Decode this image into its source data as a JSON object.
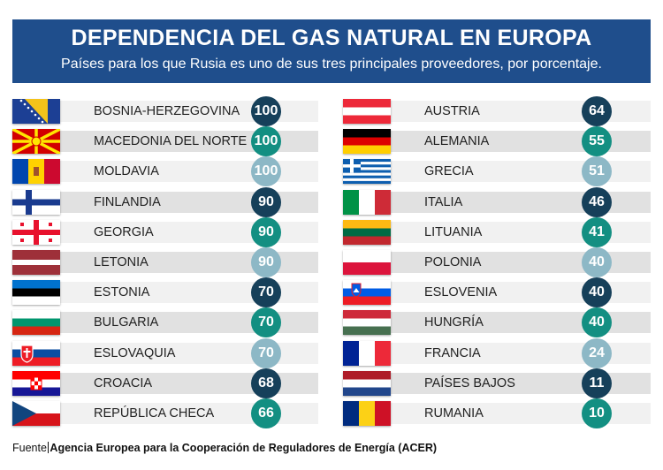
{
  "header": {
    "title": "DEPENDENCIA DEL GAS NATURAL EN EUROPA",
    "subtitle": "Países para los que Rusia es uno de sus tres principales proveedores, por porcentaje."
  },
  "footer": {
    "label": "Fuente",
    "source": "Agencia Europea para la Cooperación de Reguladores de Energía (ACER)"
  },
  "colors": {
    "header_bg": "#1f4e8c",
    "dark": "#16405a",
    "teal": "#138f82",
    "light": "#8db8c6",
    "band_light": "#f1f1f1",
    "band_dark": "#e1e1e1"
  },
  "chart_data": {
    "type": "table",
    "title": "DEPENDENCIA DEL GAS NATURAL EN EUROPA",
    "subtitle": "Países para los que Rusia es uno de sus tres principales proveedores, por porcentaje.",
    "columns": [
      [
        {
          "country": "BOSNIA-HERZEGOVINA",
          "value": 100,
          "flag": "bosnia-herzegovina-flag",
          "badge": "dark"
        },
        {
          "country": "MACEDONIA DEL NORTE",
          "value": 100,
          "flag": "north-macedonia-flag",
          "badge": "teal"
        },
        {
          "country": "MOLDAVIA",
          "value": 100,
          "flag": "moldova-flag",
          "badge": "light"
        },
        {
          "country": "FINLANDIA",
          "value": 90,
          "flag": "finland-flag",
          "badge": "dark"
        },
        {
          "country": "GEORGIA",
          "value": 90,
          "flag": "georgia-flag",
          "badge": "teal"
        },
        {
          "country": "LETONIA",
          "value": 90,
          "flag": "latvia-flag",
          "badge": "light"
        },
        {
          "country": "ESTONIA",
          "value": 70,
          "flag": "estonia-flag",
          "badge": "dark"
        },
        {
          "country": "BULGARIA",
          "value": 70,
          "flag": "bulgaria-flag",
          "badge": "teal"
        },
        {
          "country": "ESLOVAQUIA",
          "value": 70,
          "flag": "slovakia-flag",
          "badge": "light"
        },
        {
          "country": "CROACIA",
          "value": 68,
          "flag": "croatia-flag",
          "badge": "dark"
        },
        {
          "country": "REPÚBLICA CHECA",
          "value": 66,
          "flag": "czech-republic-flag",
          "badge": "teal"
        }
      ],
      [
        {
          "country": "AUSTRIA",
          "value": 64,
          "flag": "austria-flag",
          "badge": "dark"
        },
        {
          "country": "ALEMANIA",
          "value": 55,
          "flag": "germany-flag",
          "badge": "teal"
        },
        {
          "country": "GRECIA",
          "value": 51,
          "flag": "greece-flag",
          "badge": "light"
        },
        {
          "country": "ITALIA",
          "value": 46,
          "flag": "italy-flag",
          "badge": "dark"
        },
        {
          "country": "LITUANIA",
          "value": 41,
          "flag": "lithuania-flag",
          "badge": "teal"
        },
        {
          "country": "POLONIA",
          "value": 40,
          "flag": "poland-flag",
          "badge": "light"
        },
        {
          "country": "ESLOVENIA",
          "value": 40,
          "flag": "slovenia-flag",
          "badge": "dark"
        },
        {
          "country": "HUNGRÍA",
          "value": 40,
          "flag": "hungary-flag",
          "badge": "teal"
        },
        {
          "country": "FRANCIA",
          "value": 24,
          "flag": "france-flag",
          "badge": "light"
        },
        {
          "country": "PAÍSES BAJOS",
          "value": 11,
          "flag": "netherlands-flag",
          "badge": "dark"
        },
        {
          "country": "RUMANIA",
          "value": 10,
          "flag": "romania-flag",
          "badge": "teal"
        }
      ]
    ]
  }
}
